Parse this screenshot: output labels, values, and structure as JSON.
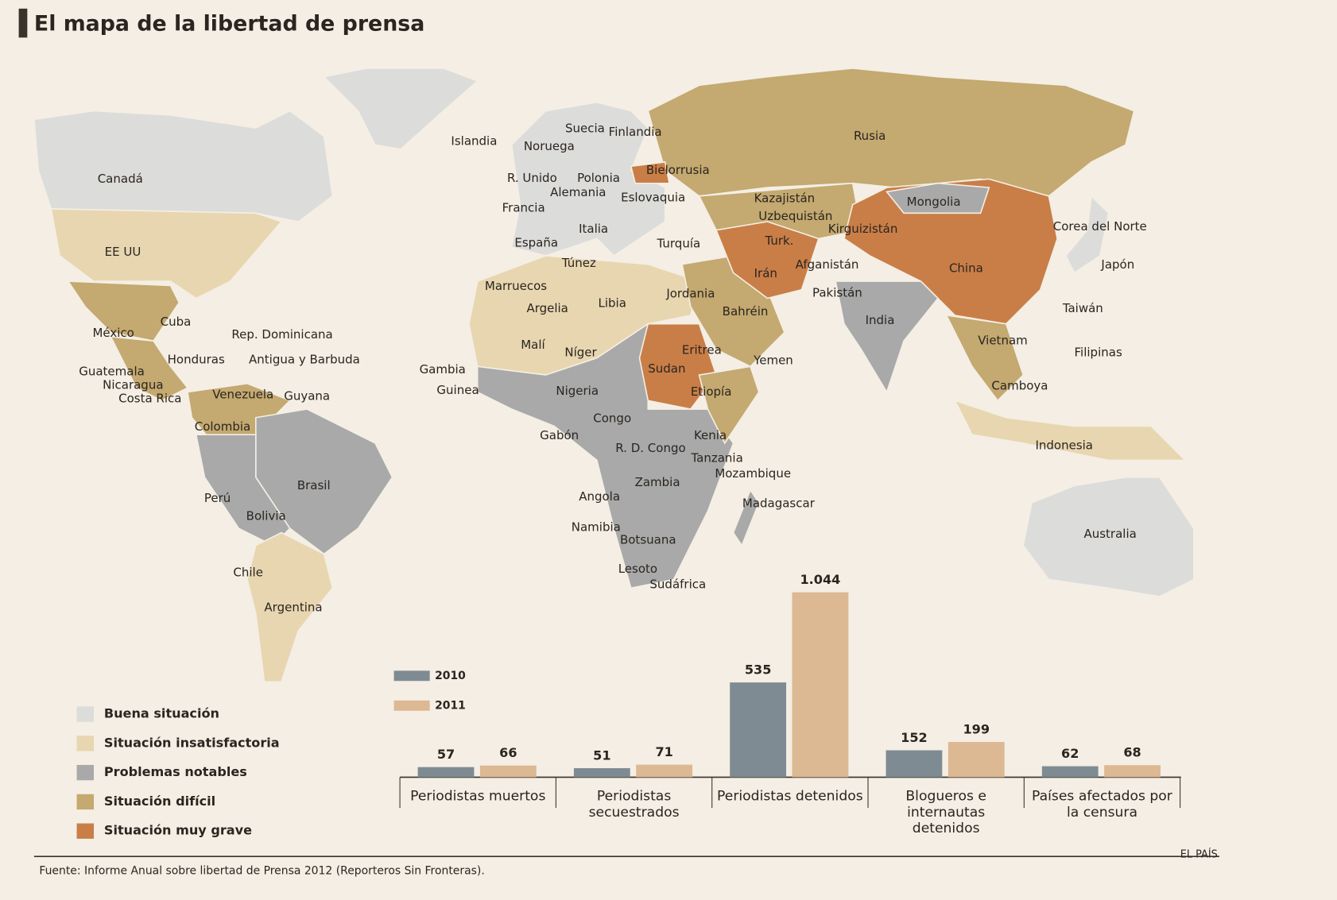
{
  "title": "El mapa de la libertad de prensa",
  "map": {
    "labels": [
      "Islandia",
      "Suecia",
      "Finlandia",
      "Noruega",
      "Rusia",
      "R. Unido",
      "Polonia",
      "Bielorrusia",
      "Alemania",
      "Eslovaquia",
      "Francia",
      "Kazajistán",
      "Mongolia",
      "Uzbequistán",
      "Canadá",
      "Italia",
      "Kirguizistán",
      "Corea del Norte",
      "España",
      "Turquía",
      "Turk.",
      "EE UU",
      "Túnez",
      "Afganistán",
      "China",
      "Japón",
      "Irán",
      "Marruecos",
      "Jordania",
      "Pakistán",
      "Argelia",
      "Libia",
      "Bahréin",
      "Taiwán",
      "India",
      "Cuba",
      "México",
      "Rep. Dominicana",
      "Vietnam",
      "Malí",
      "Níger",
      "Eritrea",
      "Filipinas",
      "Honduras",
      "Antigua y Barbuda",
      "Yemen",
      "Gambia",
      "Sudan",
      "Guatemala",
      "Nicaragua",
      "Camboya",
      "Guinea",
      "Nigeria",
      "Etiopía",
      "Venezuela",
      "Guyana",
      "Costa Rica",
      "Congo",
      "Colombia",
      "Gabón",
      "Kenia",
      "Indonesia",
      "R. D. Congo",
      "Tanzania",
      "Mozambique",
      "Zambia",
      "Brasil",
      "Perú",
      "Angola",
      "Madagascar",
      "Bolivia",
      "Namibia",
      "Australia",
      "Botsuana",
      "Chile",
      "Lesoto",
      "Sudáfrica",
      "Argentina"
    ],
    "legend": [
      {
        "label": "Buena situación",
        "color": "#dcdcda"
      },
      {
        "label": "Situación insatisfactoria",
        "color": "#e8d6b0"
      },
      {
        "label": "Problemas notables",
        "color": "#a9a9a9"
      },
      {
        "label": "Situación difícil",
        "color": "#c4a970"
      },
      {
        "label": "Situación muy grave",
        "color": "#c97e47"
      }
    ]
  },
  "chart_data": {
    "type": "bar",
    "categories": [
      "Periodistas muertos",
      "Periodistas secuestrados",
      "Periodistas detenidos",
      "Blogueros e internautas detenidos",
      "Países afectados por la censura"
    ],
    "series": [
      {
        "name": "2010",
        "color": "#7f8b92",
        "values": [
          57,
          51,
          535,
          152,
          62
        ]
      },
      {
        "name": "2011",
        "color": "#dcb893",
        "values": [
          66,
          71,
          1044,
          199,
          68
        ],
        "value_labels": [
          "66",
          "71",
          "1.044",
          "199",
          "68"
        ]
      }
    ]
  },
  "source": "Fuente: Informe Anual sobre libertad de Prensa 2012 (Reporteros Sin Fronteras).",
  "credit": "EL PAÍS"
}
